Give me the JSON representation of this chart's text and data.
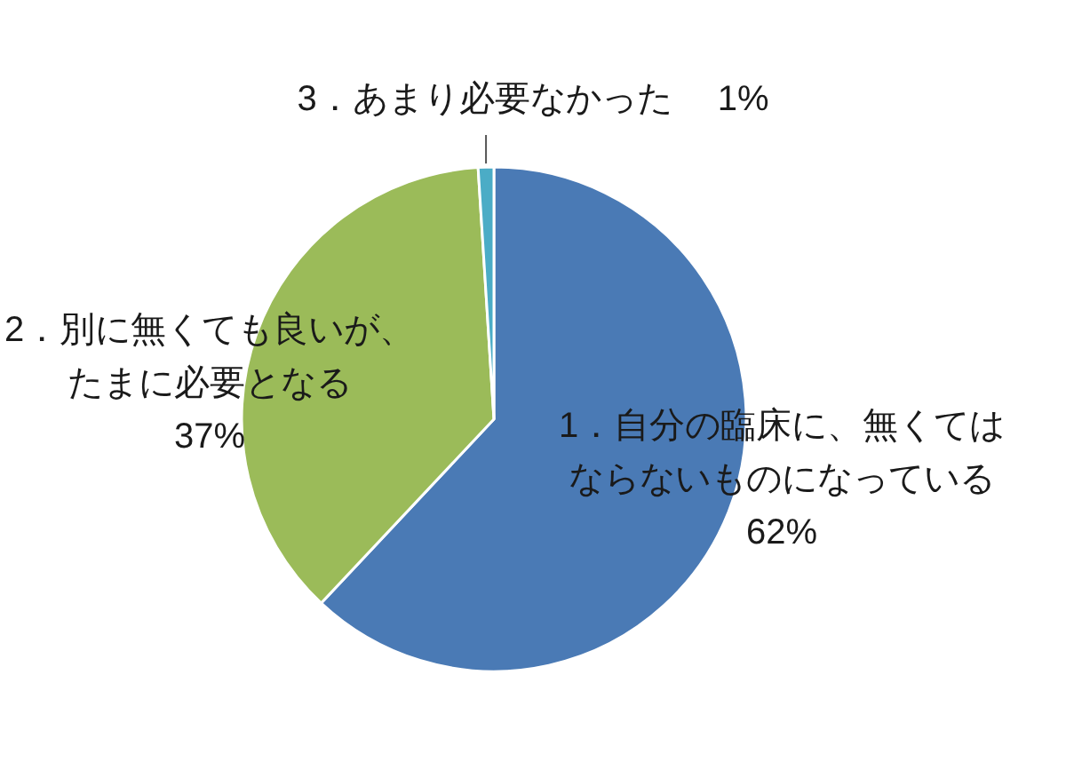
{
  "chart_data": {
    "type": "pie",
    "categories": [
      "1．自分の臨床に、無くてはならないものになっている",
      "2．別に無くても良いが、たまに必要となる",
      "3．あまり必要なかった"
    ],
    "values": [
      62,
      37,
      1
    ],
    "value_labels": [
      "62%",
      "37%",
      "1%"
    ],
    "colors": [
      "#4a7ab5",
      "#9bbb59",
      "#4bacc6"
    ]
  }
}
